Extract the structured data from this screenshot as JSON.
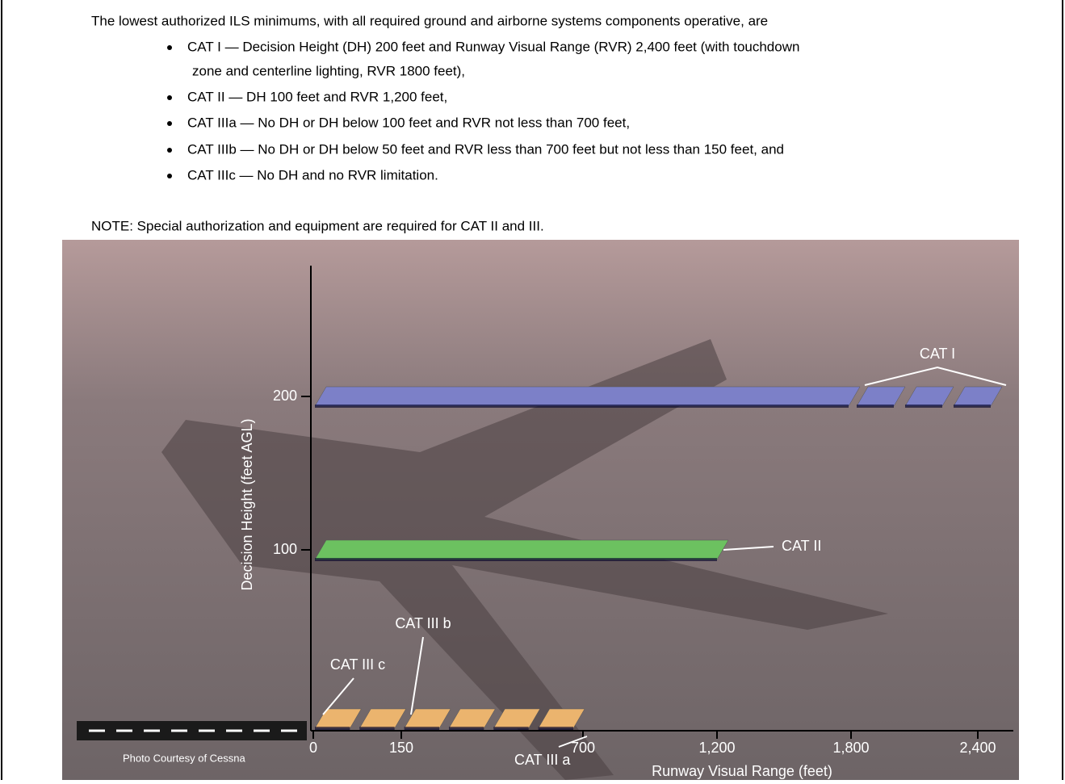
{
  "intro": "The lowest authorized ILS minimums, with all required ground and airborne systems components operative, are",
  "bullets": [
    "CAT I — Decision Height (DH) 200 feet and Runway Visual Range (RVR) 2,400 feet (with touchdown",
    "zone and centerline lighting, RVR 1800 feet),",
    "CAT II — DH 100 feet and RVR 1,200 feet,",
    "CAT IIIa — No DH or DH below 100 feet and RVR not less than 700 feet,",
    "CAT IIIb — No DH or DH below 50 feet and RVR less than 700 feet but not less than 150 feet, and",
    "CAT IIIc — No DH and no RVR limitation."
  ],
  "note": "NOTE: Special authorization and equipment are required for CAT II and III.",
  "credit": "Photo Courtesy of Cessna",
  "chart_data": {
    "type": "bar",
    "xlabel": "Runway Visual Range (feet)",
    "ylabel": "Decision Height (feet AGL)",
    "categories": [
      "CAT I",
      "CAT II",
      "CAT III a"
    ],
    "values": [
      200,
      100,
      0
    ],
    "rvr": [
      2400,
      1200,
      700
    ],
    "colors": [
      "#7c80c8",
      "#6cc160",
      "#ebb46e"
    ],
    "annotations": [
      {
        "text": "CAT III b",
        "x": 150
      },
      {
        "text": "CAT III c",
        "x": 0
      }
    ],
    "xticks": [
      0,
      150,
      700,
      {
        "value": 1200,
        "label": "1,200"
      },
      {
        "value": 1800,
        "label": "1,800"
      },
      {
        "value": 2400,
        "label": "2,400"
      }
    ],
    "yticks": [
      100,
      200
    ]
  }
}
